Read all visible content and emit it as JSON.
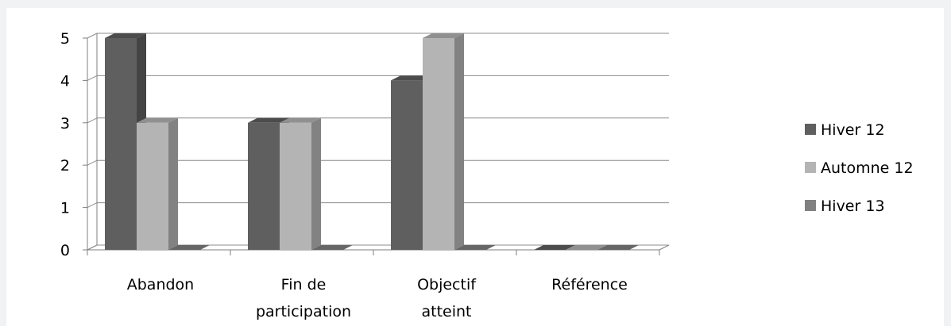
{
  "chart_data": {
    "type": "bar",
    "style": "3d-clustered-column",
    "categories": [
      [
        "Abandon"
      ],
      [
        "Fin de",
        "participation"
      ],
      [
        "Objectif",
        "atteint"
      ],
      [
        "Référence"
      ]
    ],
    "series": [
      {
        "name": "Hiver 12",
        "values": [
          5,
          3,
          4,
          0
        ],
        "color": "#5f5f5f"
      },
      {
        "name": "Automne 12",
        "values": [
          3,
          3,
          5,
          0
        ],
        "color": "#b4b4b4"
      },
      {
        "name": "Hiver 13",
        "values": [
          0,
          0,
          0,
          0
        ],
        "color": "#808080"
      }
    ],
    "ylim": [
      0,
      5
    ],
    "yticks": [
      "0",
      "1",
      "2",
      "3",
      "4",
      "5"
    ],
    "grid": true,
    "legend_position": "right"
  }
}
